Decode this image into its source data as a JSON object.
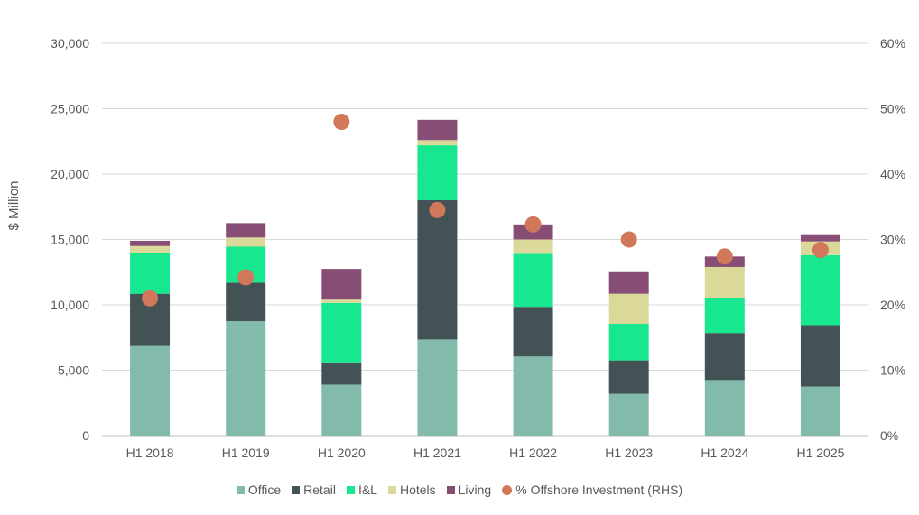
{
  "chart_data": {
    "type": "bar",
    "stacked": true,
    "categories": [
      "H1 2018",
      "H1 2019",
      "H1 2020",
      "H1 2021",
      "H1 2022",
      "H1 2023",
      "H1 2024",
      "H1 2025"
    ],
    "ylabel": "$ Million",
    "ylim": [
      0,
      30000
    ],
    "yticks": [
      "0",
      "5,000",
      "10,000",
      "15,000",
      "20,000",
      "25,000",
      "30,000"
    ],
    "y2lim": [
      0,
      60
    ],
    "y2ticks": [
      "0%",
      "10%",
      "20%",
      "30%",
      "40%",
      "50%",
      "60%"
    ],
    "grid": true,
    "legend_position": "bottom",
    "series": [
      {
        "name": "Office",
        "color": "#82BBAC",
        "values": [
          6850,
          8750,
          3900,
          7350,
          6050,
          3200,
          4250,
          3750
        ]
      },
      {
        "name": "Retail",
        "color": "#435254",
        "values": [
          4000,
          2950,
          1700,
          10650,
          3800,
          2550,
          3600,
          4700
        ]
      },
      {
        "name": "I&L",
        "color": "#17E88F",
        "values": [
          3150,
          2750,
          4550,
          4200,
          4050,
          2800,
          2700,
          5350
        ]
      },
      {
        "name": "Hotels",
        "color": "#DBD99A",
        "values": [
          500,
          700,
          250,
          400,
          1100,
          2300,
          2350,
          1050
        ]
      },
      {
        "name": "Living",
        "color": "#884D74",
        "values": [
          400,
          1100,
          2350,
          1550,
          1150,
          1650,
          800,
          550
        ]
      }
    ],
    "scatter_series": {
      "name": "% Offshore Investment (RHS)",
      "color": "#D2785A",
      "axis": "right",
      "values": [
        21,
        24.2,
        48,
        34.5,
        32.3,
        30,
        27.4,
        28.4
      ]
    }
  }
}
